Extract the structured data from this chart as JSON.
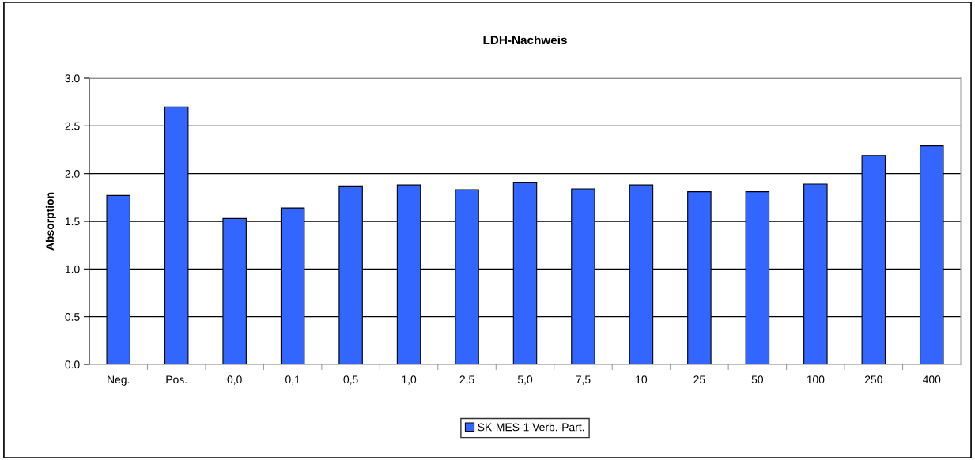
{
  "chart_data": {
    "type": "bar",
    "title": "LDH-Nachweis",
    "ylabel": "Absorption",
    "categories": [
      "Neg.",
      "Pos.",
      "0,0",
      "0,1",
      "0,5",
      "1,0",
      "2,5",
      "5,0",
      "7,5",
      "10",
      "25",
      "50",
      "100",
      "250",
      "400"
    ],
    "series": [
      {
        "name": "SK-MES-1 Verb.-Part.",
        "color": "#3366ff",
        "values": [
          1.77,
          2.7,
          1.53,
          1.64,
          1.87,
          1.88,
          1.83,
          1.91,
          1.84,
          1.88,
          1.81,
          1.81,
          1.89,
          2.19,
          2.29
        ]
      }
    ],
    "ylim": [
      0,
      3
    ],
    "yticks": [
      {
        "value": 0,
        "label": "0.0"
      },
      {
        "value": 0.5,
        "label": "0.5"
      },
      {
        "value": 1,
        "label": "1.0"
      },
      {
        "value": 1.5,
        "label": "1.5"
      },
      {
        "value": 2,
        "label": "2.0"
      },
      {
        "value": 2.5,
        "label": "2.5"
      },
      {
        "value": 3,
        "label": "3.0"
      }
    ],
    "grid": "y",
    "legend": "bottom"
  }
}
